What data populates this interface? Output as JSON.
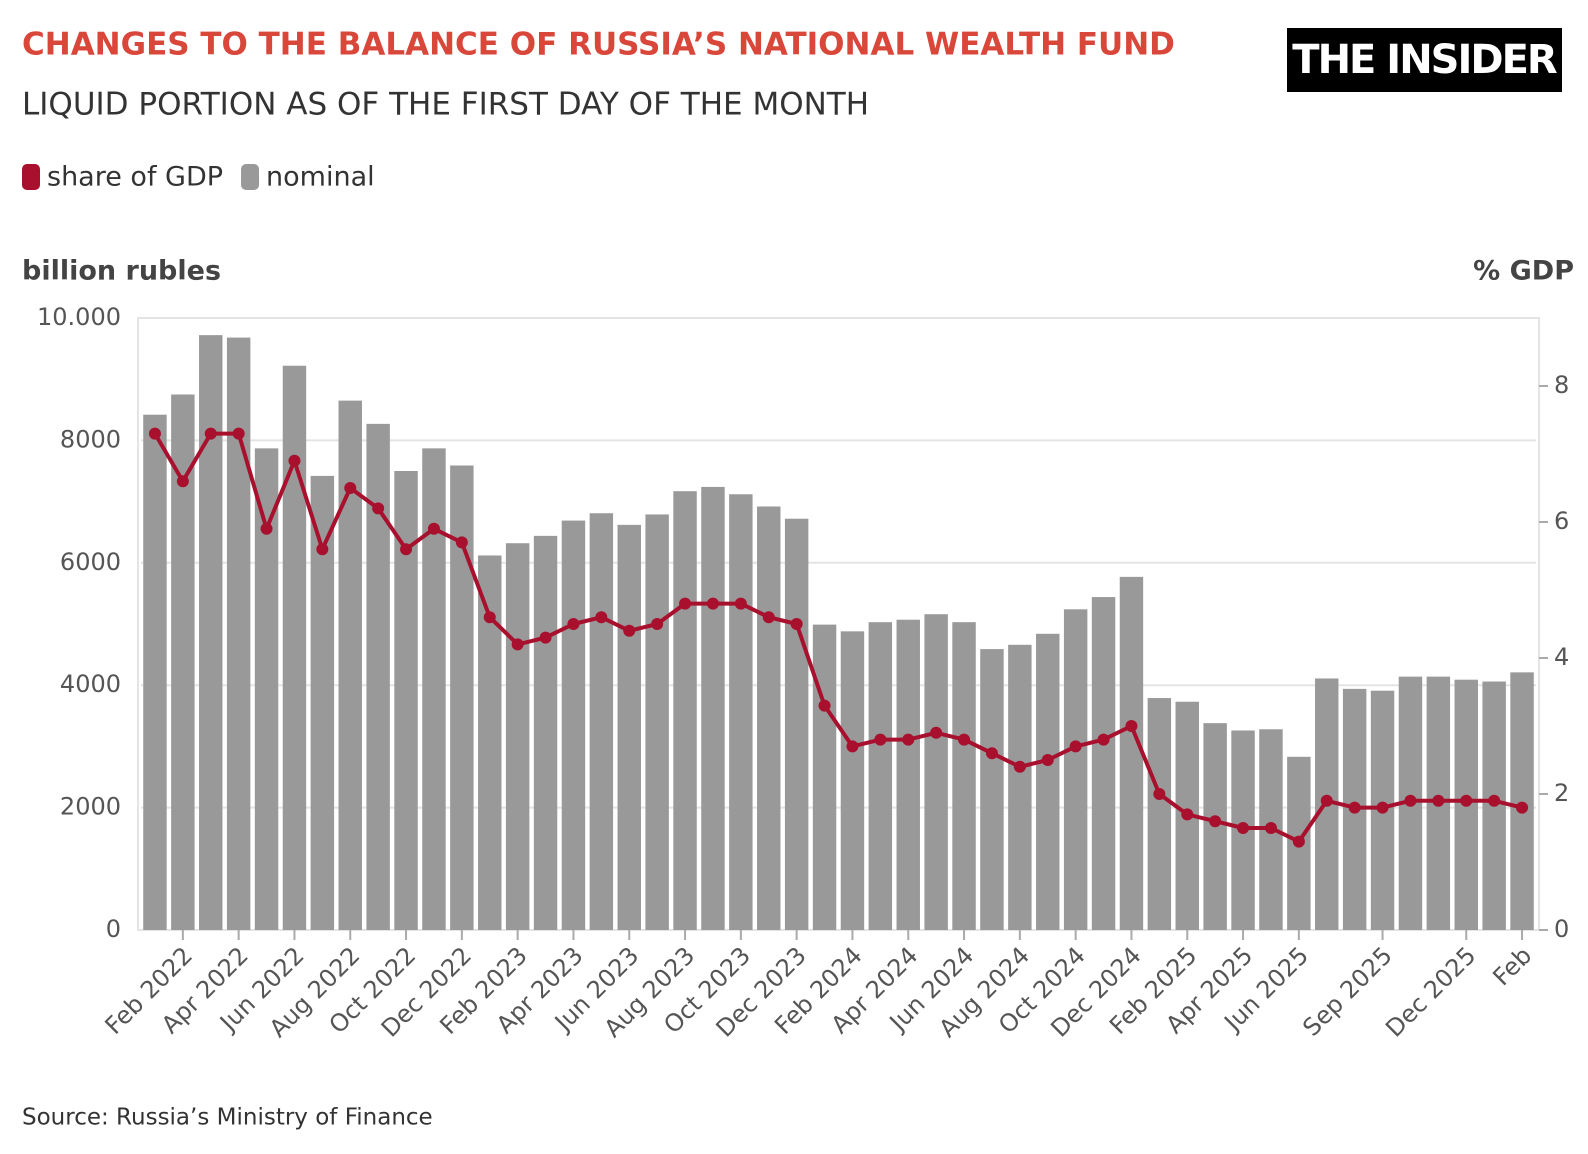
{
  "chart_data": {
    "type": "bar",
    "title": "CHANGES TO THE BALANCE OF RUSSIA’S NATIONAL WEALTH FUND",
    "subtitle": "LIQUID PORTION AS OF THE FIRST DAY OF THE MONTH",
    "logo": "THE INSIDER",
    "y_label": "billion rubles",
    "y2_label": "% GDP",
    "source": "Source: Russia’s Ministry of Finance",
    "categories": [
      null,
      "Feb 2022",
      null,
      "Apr 2022",
      null,
      "Jun 2022",
      null,
      "Aug 2022",
      null,
      "Oct 2022",
      null,
      "Dec 2022",
      null,
      "Feb 2023",
      null,
      "Apr 2023",
      null,
      "Jun 2023",
      null,
      "Aug 2023",
      null,
      "Oct 2023",
      null,
      "Dec 2023",
      null,
      "Feb 2024",
      null,
      "Apr 2024",
      null,
      "Jun 2024",
      null,
      "Aug 2024",
      null,
      "Oct 2024",
      null,
      "Dec 2024",
      null,
      "Feb 2025",
      null,
      "Apr 2025",
      null,
      "Jun 2025",
      null,
      null,
      "Sep 2025",
      null,
      null,
      "Dec 2025",
      null,
      "Feb"
    ],
    "series": [
      {
        "name": "share of GDP",
        "type": "line",
        "axis": "y2",
        "color": "#a8102e",
        "values": [
          7.3,
          6.6,
          7.3,
          7.3,
          5.9,
          6.9,
          5.6,
          6.5,
          6.2,
          5.6,
          5.9,
          5.7,
          4.6,
          4.2,
          4.3,
          4.5,
          4.6,
          4.4,
          4.5,
          4.8,
          4.8,
          4.8,
          4.6,
          4.5,
          3.3,
          2.7,
          2.8,
          2.8,
          2.9,
          2.8,
          2.6,
          2.4,
          2.5,
          2.7,
          2.8,
          3.0,
          2.0,
          1.7,
          1.6,
          1.5,
          1.5,
          1.3,
          1.9,
          1.8,
          1.8,
          1.9,
          1.9,
          1.9,
          1.9,
          1.8
        ]
      },
      {
        "name": "nominal",
        "type": "bar",
        "color": "#999999",
        "values": [
          8420,
          8750,
          9720,
          9680,
          7870,
          9220,
          7420,
          8650,
          8270,
          7500,
          7870,
          7590,
          6120,
          6320,
          6440,
          6690,
          6810,
          6620,
          6790,
          7170,
          7240,
          7120,
          6920,
          6720,
          4990,
          4880,
          5030,
          5070,
          5160,
          5030,
          4590,
          4660,
          4840,
          5240,
          5440,
          5770,
          3790,
          3730,
          3380,
          3260,
          3280,
          2830,
          4110,
          3940,
          3910,
          4140,
          4140,
          4090,
          4060,
          4210
        ]
      }
    ],
    "ylim": [
      0,
      10000
    ],
    "yticks": [
      0,
      2000,
      4000,
      6000,
      8000,
      {
        "value": 10000,
        "label": "10.000"
      }
    ],
    "y2lim": [
      0,
      9
    ],
    "y2ticks": [
      0,
      2,
      4,
      6,
      8
    ],
    "grid": true
  }
}
